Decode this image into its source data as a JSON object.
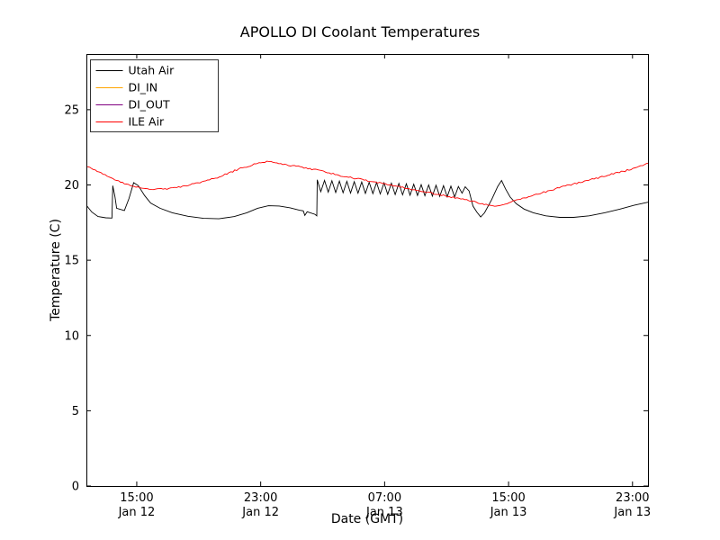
{
  "chart_data": {
    "type": "line",
    "title": "APOLLO DI Coolant Temperatures",
    "xlabel": "Date (GMT)",
    "ylabel": "Temperature (C)",
    "x_unit": "hours since Jan 12 00:00 GMT",
    "xlim": [
      11.75,
      48.0
    ],
    "ylim": [
      0,
      28.7
    ],
    "grid": false,
    "legend_position": "upper left",
    "xticks": [
      {
        "value": 15,
        "label": "15:00",
        "sublabel": "Jan 12"
      },
      {
        "value": 23,
        "label": "23:00",
        "sublabel": "Jan 12"
      },
      {
        "value": 31,
        "label": "07:00",
        "sublabel": "Jan 13"
      },
      {
        "value": 39,
        "label": "15:00",
        "sublabel": "Jan 13"
      },
      {
        "value": 47,
        "label": "23:00",
        "sublabel": "Jan 13"
      }
    ],
    "yticks": [
      0,
      5,
      10,
      15,
      20,
      25
    ],
    "series": [
      {
        "name": "Utah Air",
        "color": "#000000",
        "visible": true,
        "noise_amplitude": 0,
        "points": [
          [
            11.75,
            18.65
          ],
          [
            12.1,
            18.2
          ],
          [
            12.5,
            17.9
          ],
          [
            13.0,
            17.82
          ],
          [
            13.4,
            17.8
          ],
          [
            13.45,
            19.95
          ],
          [
            13.6,
            19.2
          ],
          [
            13.7,
            18.45
          ],
          [
            14.2,
            18.3
          ],
          [
            14.5,
            19.1
          ],
          [
            14.8,
            20.15
          ],
          [
            15.1,
            19.95
          ],
          [
            15.5,
            19.3
          ],
          [
            15.9,
            18.8
          ],
          [
            16.5,
            18.45
          ],
          [
            17.3,
            18.15
          ],
          [
            18.3,
            17.92
          ],
          [
            19.3,
            17.78
          ],
          [
            20.3,
            17.75
          ],
          [
            21.3,
            17.9
          ],
          [
            22.1,
            18.15
          ],
          [
            22.8,
            18.45
          ],
          [
            23.5,
            18.62
          ],
          [
            24.2,
            18.6
          ],
          [
            24.9,
            18.48
          ],
          [
            25.5,
            18.32
          ],
          [
            25.75,
            18.28
          ],
          [
            25.85,
            17.98
          ],
          [
            26.0,
            18.22
          ],
          [
            26.5,
            18.05
          ],
          [
            26.62,
            17.95
          ],
          [
            26.65,
            20.35
          ],
          [
            26.88,
            19.55
          ],
          [
            27.12,
            20.3
          ],
          [
            27.36,
            19.52
          ],
          [
            27.6,
            20.28
          ],
          [
            27.84,
            19.5
          ],
          [
            28.08,
            20.26
          ],
          [
            28.32,
            19.48
          ],
          [
            28.56,
            20.24
          ],
          [
            28.8,
            19.46
          ],
          [
            29.04,
            20.22
          ],
          [
            29.28,
            19.45
          ],
          [
            29.52,
            20.2
          ],
          [
            29.76,
            19.44
          ],
          [
            30.0,
            20.18
          ],
          [
            30.24,
            19.42
          ],
          [
            30.48,
            20.16
          ],
          [
            30.72,
            19.4
          ],
          [
            30.96,
            20.14
          ],
          [
            31.2,
            19.38
          ],
          [
            31.44,
            20.12
          ],
          [
            31.68,
            19.36
          ],
          [
            31.92,
            20.1
          ],
          [
            32.16,
            19.34
          ],
          [
            32.4,
            20.08
          ],
          [
            32.64,
            19.32
          ],
          [
            32.88,
            20.05
          ],
          [
            33.12,
            19.3
          ],
          [
            33.36,
            20.02
          ],
          [
            33.6,
            19.28
          ],
          [
            33.84,
            20.0
          ],
          [
            34.08,
            19.26
          ],
          [
            34.32,
            19.98
          ],
          [
            34.56,
            19.24
          ],
          [
            34.8,
            19.95
          ],
          [
            35.04,
            19.22
          ],
          [
            35.28,
            19.92
          ],
          [
            35.52,
            19.2
          ],
          [
            35.76,
            19.9
          ],
          [
            36.0,
            19.45
          ],
          [
            36.2,
            19.88
          ],
          [
            36.45,
            19.6
          ],
          [
            36.7,
            18.6
          ],
          [
            36.95,
            18.2
          ],
          [
            37.2,
            17.88
          ],
          [
            37.45,
            18.15
          ],
          [
            37.9,
            19.0
          ],
          [
            38.3,
            19.9
          ],
          [
            38.55,
            20.3
          ],
          [
            38.8,
            19.75
          ],
          [
            39.1,
            19.2
          ],
          [
            39.5,
            18.75
          ],
          [
            40.0,
            18.4
          ],
          [
            40.6,
            18.15
          ],
          [
            41.4,
            17.95
          ],
          [
            42.3,
            17.85
          ],
          [
            43.2,
            17.85
          ],
          [
            44.2,
            17.95
          ],
          [
            45.2,
            18.15
          ],
          [
            46.2,
            18.4
          ],
          [
            47.1,
            18.65
          ],
          [
            48.0,
            18.85
          ]
        ]
      },
      {
        "name": "DI_IN",
        "color": "#ffa500",
        "visible": false,
        "noise_amplitude": 0,
        "points": []
      },
      {
        "name": "DI_OUT",
        "color": "#800080",
        "visible": false,
        "noise_amplitude": 0,
        "points": []
      },
      {
        "name": "ILE Air",
        "color": "#ff0000",
        "visible": true,
        "noise_amplitude": 0.05,
        "points": [
          [
            11.75,
            21.2
          ],
          [
            12.2,
            21.05
          ],
          [
            12.7,
            20.8
          ],
          [
            13.2,
            20.55
          ],
          [
            13.7,
            20.3
          ],
          [
            14.2,
            20.1
          ],
          [
            14.7,
            19.95
          ],
          [
            15.2,
            19.85
          ],
          [
            15.7,
            19.75
          ],
          [
            16.2,
            19.7
          ],
          [
            16.7,
            19.72
          ],
          [
            17.2,
            19.78
          ],
          [
            17.7,
            19.85
          ],
          [
            18.2,
            19.95
          ],
          [
            18.7,
            20.1
          ],
          [
            19.2,
            20.2
          ],
          [
            19.7,
            20.35
          ],
          [
            20.2,
            20.5
          ],
          [
            20.7,
            20.7
          ],
          [
            21.2,
            20.9
          ],
          [
            21.7,
            21.1
          ],
          [
            22.2,
            21.25
          ],
          [
            22.7,
            21.4
          ],
          [
            23.0,
            21.5
          ],
          [
            23.4,
            21.55
          ],
          [
            23.8,
            21.5
          ],
          [
            24.3,
            21.4
          ],
          [
            24.8,
            21.3
          ],
          [
            25.3,
            21.25
          ],
          [
            25.8,
            21.15
          ],
          [
            26.3,
            21.05
          ],
          [
            26.8,
            20.95
          ],
          [
            27.3,
            20.85
          ],
          [
            27.8,
            20.7
          ],
          [
            28.3,
            20.6
          ],
          [
            28.8,
            20.5
          ],
          [
            29.3,
            20.4
          ],
          [
            29.8,
            20.3
          ],
          [
            30.3,
            20.2
          ],
          [
            30.8,
            20.1
          ],
          [
            31.3,
            20.0
          ],
          [
            31.8,
            19.9
          ],
          [
            32.3,
            19.8
          ],
          [
            32.8,
            19.7
          ],
          [
            33.3,
            19.6
          ],
          [
            33.8,
            19.5
          ],
          [
            34.3,
            19.4
          ],
          [
            34.8,
            19.3
          ],
          [
            35.3,
            19.2
          ],
          [
            35.8,
            19.1
          ],
          [
            36.3,
            19.0
          ],
          [
            36.8,
            18.9
          ],
          [
            37.3,
            18.75
          ],
          [
            37.8,
            18.65
          ],
          [
            38.1,
            18.6
          ],
          [
            38.4,
            18.65
          ],
          [
            38.9,
            18.8
          ],
          [
            39.4,
            18.95
          ],
          [
            39.9,
            19.1
          ],
          [
            40.4,
            19.25
          ],
          [
            40.9,
            19.4
          ],
          [
            41.4,
            19.55
          ],
          [
            41.9,
            19.7
          ],
          [
            42.4,
            19.85
          ],
          [
            42.9,
            20.0
          ],
          [
            43.4,
            20.1
          ],
          [
            43.9,
            20.25
          ],
          [
            44.4,
            20.4
          ],
          [
            44.9,
            20.5
          ],
          [
            45.4,
            20.65
          ],
          [
            45.9,
            20.8
          ],
          [
            46.4,
            20.9
          ],
          [
            46.9,
            21.05
          ],
          [
            47.4,
            21.2
          ],
          [
            47.9,
            21.4
          ],
          [
            48.0,
            21.45
          ]
        ]
      }
    ]
  }
}
